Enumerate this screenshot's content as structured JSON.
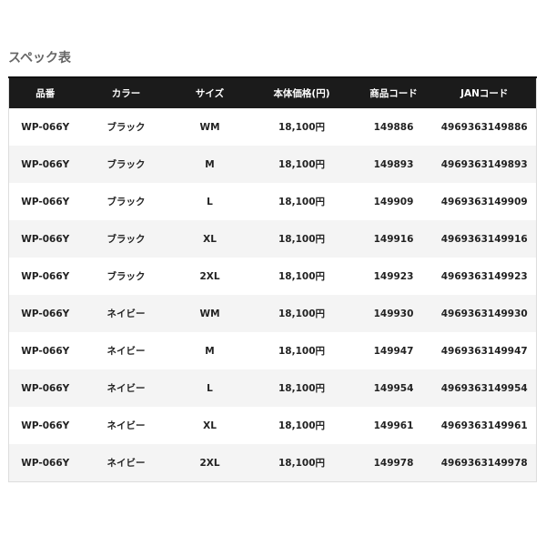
{
  "title": "スペック表",
  "table": {
    "headers": [
      "品番",
      "カラー",
      "サイズ",
      "本体価格(円)",
      "商品コード",
      "JANコード"
    ],
    "rows": [
      [
        "WP-066Y",
        "ブラック",
        "WM",
        "18,100円",
        "149886",
        "4969363149886"
      ],
      [
        "WP-066Y",
        "ブラック",
        "M",
        "18,100円",
        "149893",
        "4969363149893"
      ],
      [
        "WP-066Y",
        "ブラック",
        "L",
        "18,100円",
        "149909",
        "4969363149909"
      ],
      [
        "WP-066Y",
        "ブラック",
        "XL",
        "18,100円",
        "149916",
        "4969363149916"
      ],
      [
        "WP-066Y",
        "ブラック",
        "2XL",
        "18,100円",
        "149923",
        "4969363149923"
      ],
      [
        "WP-066Y",
        "ネイビー",
        "WM",
        "18,100円",
        "149930",
        "4969363149930"
      ],
      [
        "WP-066Y",
        "ネイビー",
        "M",
        "18,100円",
        "149947",
        "4969363149947"
      ],
      [
        "WP-066Y",
        "ネイビー",
        "L",
        "18,100円",
        "149954",
        "4969363149954"
      ],
      [
        "WP-066Y",
        "ネイビー",
        "XL",
        "18,100円",
        "149961",
        "4969363149961"
      ],
      [
        "WP-066Y",
        "ネイビー",
        "2XL",
        "18,100円",
        "149978",
        "4969363149978"
      ]
    ]
  },
  "colors": {
    "header_bg": "#1b1b1b",
    "alt_row": "#f4f4f4"
  }
}
